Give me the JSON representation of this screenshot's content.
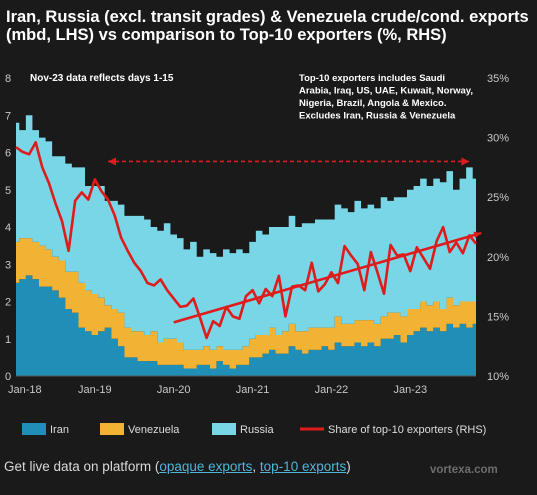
{
  "title": "Iran, Russia (excl. transit grades) & Venezuela crude/cond. exports (mbd, LHS) vs comparison to Top-10 exporters (%, RHS)",
  "note_left": "Nov-23 data reflects days 1-15",
  "note_right": [
    "Top-10 exporters includes Saudi",
    "Arabia, Iraq, US, UAE, Kuwait, Norway,",
    "Nigeria, Brazil, Angola & Mexico.",
    "Excludes Iran, Russia & Venezuela"
  ],
  "footer": {
    "prefix": "Get live data on platform (",
    "link1": "opaque exports",
    "sep": ", ",
    "link2": "top-10 exports",
    "suffix": ")"
  },
  "brand": "vortexa.com",
  "colors": {
    "background": "#1a1a1a",
    "iran": "#1f8fb8",
    "venezuela": "#f2b233",
    "russia": "#78d6e6",
    "share_line": "#e01b1b",
    "trend_line": "#e01b1b",
    "text": "#ffffff",
    "axis_text": "#c8c8c8",
    "link": "#4fb6d8"
  },
  "chart_data": {
    "type": "area",
    "stacked": true,
    "x_tick_labels": [
      "Jan-18",
      "Jan-19",
      "Jan-20",
      "Jan-21",
      "Jan-22",
      "Jan-23"
    ],
    "x_start": "2018-01",
    "x_end": "2023-11",
    "y_left": {
      "ticks": [
        "0",
        "1",
        "2",
        "3",
        "4",
        "5",
        "6",
        "7",
        "8"
      ],
      "ylim": [
        0,
        8
      ]
    },
    "y_right": {
      "ticks": [
        "10%",
        "15%",
        "20%",
        "25%",
        "30%",
        "35%"
      ],
      "ylim": [
        10,
        35
      ]
    },
    "series": [
      {
        "name": "Iran",
        "values": [
          2.5,
          2.6,
          2.7,
          2.6,
          2.4,
          2.4,
          2.3,
          2.1,
          1.8,
          1.7,
          1.3,
          1.2,
          1.1,
          1.2,
          1.3,
          1.0,
          0.8,
          0.5,
          0.5,
          0.4,
          0.4,
          0.4,
          0.3,
          0.3,
          0.3,
          0.3,
          0.2,
          0.2,
          0.3,
          0.3,
          0.2,
          0.4,
          0.3,
          0.2,
          0.3,
          0.3,
          0.5,
          0.5,
          0.6,
          0.7,
          0.6,
          0.6,
          0.8,
          0.7,
          0.6,
          0.7,
          0.7,
          0.8,
          0.7,
          0.9,
          0.8,
          0.8,
          0.9,
          0.8,
          0.9,
          0.8,
          1.0,
          1.0,
          1.1,
          0.9,
          1.1,
          1.2,
          1.3,
          1.2,
          1.3,
          1.2,
          1.4,
          1.3,
          1.4,
          1.3,
          1.4
        ]
      },
      {
        "name": "Venezuela",
        "values": [
          1.1,
          1.1,
          1.0,
          1.0,
          1.1,
          1.0,
          0.9,
          1.0,
          1.0,
          1.1,
          1.2,
          1.1,
          1.1,
          0.9,
          0.6,
          0.8,
          0.9,
          0.8,
          0.7,
          0.8,
          0.7,
          0.8,
          0.6,
          0.7,
          0.7,
          0.6,
          0.5,
          0.5,
          0.4,
          0.5,
          0.5,
          0.4,
          0.4,
          0.5,
          0.4,
          0.5,
          0.5,
          0.6,
          0.5,
          0.6,
          0.5,
          0.6,
          0.6,
          0.5,
          0.6,
          0.6,
          0.6,
          0.5,
          0.6,
          0.7,
          0.6,
          0.6,
          0.6,
          0.7,
          0.6,
          0.6,
          0.6,
          0.7,
          0.6,
          0.7,
          0.7,
          0.6,
          0.7,
          0.7,
          0.7,
          0.6,
          0.7,
          0.6,
          0.6,
          0.7,
          0.6
        ]
      },
      {
        "name": "Russia",
        "values": [
          3.2,
          2.9,
          3.3,
          3.0,
          2.9,
          2.9,
          2.7,
          2.8,
          2.9,
          2.8,
          3.1,
          2.8,
          2.9,
          3.0,
          2.8,
          2.9,
          2.9,
          3.0,
          3.1,
          3.1,
          3.1,
          2.8,
          3.0,
          3.1,
          2.8,
          2.8,
          2.7,
          2.9,
          2.5,
          2.6,
          2.6,
          2.4,
          2.7,
          2.6,
          2.7,
          2.5,
          2.6,
          2.8,
          2.7,
          2.7,
          2.9,
          2.8,
          2.9,
          2.8,
          2.9,
          2.8,
          2.9,
          2.9,
          2.9,
          3.0,
          3.1,
          3.0,
          3.2,
          3.0,
          3.1,
          3.1,
          3.2,
          3.0,
          3.1,
          3.2,
          3.2,
          3.3,
          3.3,
          3.2,
          3.3,
          3.4,
          3.4,
          3.1,
          3.3,
          3.6,
          3.3
        ]
      },
      {
        "name": "Share of top-10 exporters (RHS)",
        "axis": "right",
        "values": [
          29.2,
          28.8,
          28.6,
          29.6,
          27.5,
          26.2,
          24.5,
          23.0,
          20.5,
          24.7,
          25.4,
          24.8,
          26.5,
          25.5,
          24.8,
          23.5,
          21.6,
          20.5,
          19.5,
          18.8,
          17.8,
          17.6,
          18.1,
          17.2,
          16.5,
          15.8,
          15.9,
          16.5,
          14.9,
          13.2,
          14.6,
          14.2,
          15.8,
          15.0,
          14.8,
          16.7,
          17.2,
          16.1,
          17.3,
          16.7,
          18.4,
          15.0,
          17.5,
          17.6,
          17.2,
          19.5,
          17.1,
          17.7,
          18.7,
          17.8,
          20.9,
          20.1,
          19.4,
          17.2,
          20.4,
          18.7,
          16.9,
          21.0,
          20.1,
          20.2,
          18.8,
          20.8,
          19.9,
          19.0,
          21.3,
          22.5,
          20.4,
          21.2,
          20.3,
          21.8,
          21.1
        ]
      }
    ],
    "trend_line": {
      "name": "trend",
      "from": [
        2020,
        14.5
      ],
      "to": [
        2023.9,
        22.0
      ]
    },
    "range_arrow": {
      "from": "Mar-19",
      "to": "Oct-23",
      "axis": "right",
      "value": 28.0
    },
    "legend": [
      "Iran",
      "Venezuela",
      "Russia",
      "Share of top-10 exporters (RHS)"
    ],
    "legend_position": "bottom"
  }
}
